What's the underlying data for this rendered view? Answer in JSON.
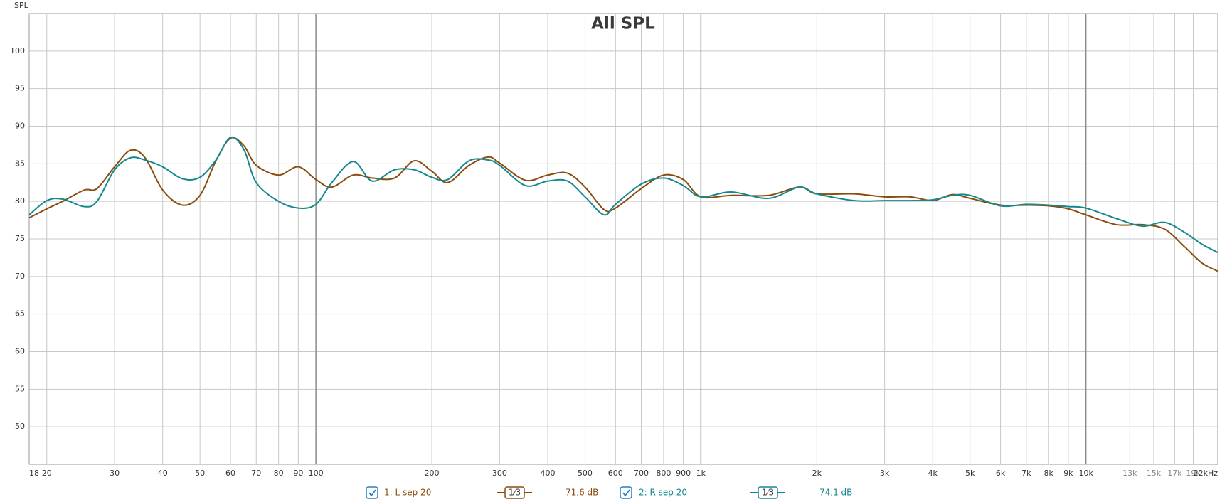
{
  "chart_data": {
    "type": "line",
    "title": "All SPL",
    "y_label": "SPL",
    "log_x": true,
    "grid": true,
    "x": [
      18,
      20,
      22,
      25,
      27,
      30,
      33,
      36,
      40,
      45,
      50,
      55,
      60,
      65,
      70,
      80,
      90,
      100,
      110,
      125,
      140,
      160,
      180,
      200,
      220,
      250,
      280,
      300,
      350,
      400,
      450,
      500,
      560,
      600,
      700,
      800,
      900,
      1000,
      1200,
      1500,
      1800,
      2000,
      2500,
      3000,
      3500,
      4000,
      4500,
      5000,
      6000,
      7000,
      8000,
      9000,
      10000,
      12000,
      14000,
      16000,
      18000,
      20000,
      22000
    ],
    "series": [
      {
        "name": "1: L sep 20",
        "color": "#8a4c0c",
        "smoothing": "1⁄3",
        "level": "71,6 dB",
        "values": [
          77.8,
          79.0,
          80.0,
          81.5,
          81.7,
          84.6,
          86.8,
          85.8,
          81.5,
          79.5,
          80.8,
          85.4,
          88.4,
          87.4,
          84.8,
          83.5,
          84.6,
          82.9,
          81.9,
          83.5,
          83.1,
          83.1,
          85.4,
          84.0,
          82.5,
          84.8,
          85.9,
          85.1,
          82.8,
          83.5,
          83.75,
          81.9,
          78.9,
          79.1,
          81.7,
          83.5,
          82.9,
          80.6,
          80.8,
          80.8,
          81.9,
          81.0,
          81.0,
          80.6,
          80.6,
          80.1,
          80.9,
          80.4,
          79.5,
          79.5,
          79.4,
          79.0,
          78.2,
          76.9,
          76.9,
          76.3,
          74.0,
          71.8,
          70.7
        ]
      },
      {
        "name": "2: R sep 20",
        "color": "#14888c",
        "smoothing": "1⁄3",
        "level": "74,1 dB",
        "values": [
          78.2,
          80.1,
          80.3,
          79.3,
          80.0,
          84.2,
          85.8,
          85.5,
          84.6,
          83.0,
          83.2,
          85.5,
          88.5,
          86.9,
          82.5,
          80.0,
          79.1,
          79.6,
          82.5,
          85.3,
          82.7,
          84.2,
          84.2,
          83.2,
          82.9,
          85.4,
          85.5,
          84.8,
          82.1,
          82.7,
          82.7,
          80.6,
          78.2,
          79.6,
          82.3,
          83.1,
          82.1,
          80.6,
          81.25,
          80.4,
          81.9,
          81.0,
          80.1,
          80.1,
          80.1,
          80.2,
          80.8,
          80.8,
          79.4,
          79.6,
          79.5,
          79.3,
          79.1,
          77.7,
          76.7,
          77.2,
          75.9,
          74.3,
          73.2
        ]
      }
    ],
    "xlim": [
      18,
      22000
    ],
    "xticks": [
      18,
      20,
      30,
      40,
      50,
      60,
      70,
      80,
      90,
      100,
      200,
      300,
      400,
      500,
      600,
      700,
      800,
      900,
      {
        "value": 1000,
        "label": "1k"
      },
      {
        "value": 2000,
        "label": "2k"
      },
      {
        "value": 3000,
        "label": "3k"
      },
      {
        "value": 4000,
        "label": "4k"
      },
      {
        "value": 5000,
        "label": "5k"
      },
      {
        "value": 6000,
        "label": "6k"
      },
      {
        "value": 7000,
        "label": "7k"
      },
      {
        "value": 8000,
        "label": "8k"
      },
      {
        "value": 9000,
        "label": "9k"
      },
      {
        "value": 10000,
        "label": "10k"
      },
      {
        "value": 13000,
        "label": "13k"
      },
      {
        "value": 15000,
        "label": "15k"
      },
      {
        "value": 17000,
        "label": "17k"
      },
      {
        "value": 19000,
        "label": "19k"
      },
      {
        "value": 22000,
        "label": "22kHz"
      }
    ],
    "ylim": [
      45,
      105
    ],
    "yticks": [
      50,
      55,
      60,
      65,
      70,
      75,
      80,
      85,
      90,
      95,
      100
    ]
  }
}
